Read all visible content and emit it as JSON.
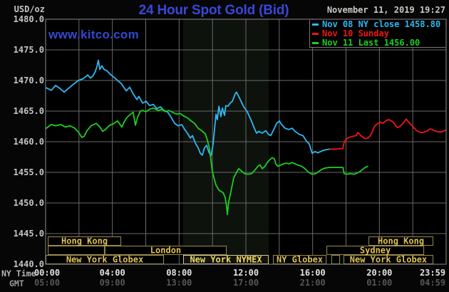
{
  "header": {
    "units": "USD/oz",
    "title": "24 Hour Spot Gold (Bid)",
    "datetime": "November 11, 2019 19:27",
    "watermark": "www.kitco.com"
  },
  "colors": {
    "background": "#060607",
    "plot_bg": "#000000",
    "grid": "#6a6a6a",
    "border": "#8c8c8c",
    "title": "#3947d8",
    "watermark": "#3448d2",
    "datetime": "#c9c9c1",
    "units": "#c4c4c4",
    "y_labels": "#c4c4c4",
    "tick_ny": "#e2e2e2",
    "tick_gmt": "#56565c",
    "axis_row_ny": "#b5b5b5",
    "axis_row_gmt": "#9a9a9a",
    "session_border": "#9a8d4c",
    "session_label": "#ddc154",
    "session_hl_border": "#d9cf9b",
    "session_hl_label": "#f0d966",
    "session_hl_bg": "#13130c",
    "shade": "#0d120d",
    "legend_border": "#787878",
    "series_cyan": "#2eb8f2",
    "series_red": "#f21414",
    "series_green": "#1ecf1e"
  },
  "legend": [
    {
      "label": "Nov 08 NY close 1458.80",
      "color": "#2eb8f2"
    },
    {
      "label": "Nov 10 Sunday",
      "color": "#f21414"
    },
    {
      "label": "Nov 11 Last 1456.00",
      "color": "#1ecf1e"
    }
  ],
  "axes": {
    "y": {
      "min": 1440,
      "max": 1480,
      "step": 5,
      "labels": [
        "1440.0",
        "1445.0",
        "1450.0",
        "1455.0",
        "1460.0",
        "1465.0",
        "1470.0",
        "1475.0",
        "1480.0"
      ]
    },
    "x": {
      "ny_label": "NY Time",
      "gmt_label": "GMT",
      "ticks": [
        {
          "t": 0,
          "ny": "00:00",
          "gmt": "05:00"
        },
        {
          "t": 4,
          "ny": "04:00",
          "gmt": "09:00"
        },
        {
          "t": 8,
          "ny": "08:00",
          "gmt": "13:00"
        },
        {
          "t": 12,
          "ny": "12:00",
          "gmt": "17:00"
        },
        {
          "t": 16,
          "ny": "16:00",
          "gmt": "21:00"
        },
        {
          "t": 20,
          "ny": "20:00",
          "gmt": "01:00"
        },
        {
          "t": 23.98,
          "ny": "23:59",
          "gmt": "04:59"
        }
      ]
    }
  },
  "sessions": {
    "rows": [
      [
        {
          "t0": 0.13,
          "t1": 4.53,
          "label": "Hong Kong"
        },
        {
          "t0": 19.35,
          "t1": 23.23,
          "label": "Hong Kong"
        }
      ],
      [
        {
          "t0": 0.13,
          "t1": 3.54,
          "label": ""
        },
        {
          "t0": 3.54,
          "t1": 10.85,
          "label": "London"
        },
        {
          "t0": 16.83,
          "t1": 22.68,
          "label": "Sydney"
        }
      ],
      [
        {
          "t0": 0,
          "t1": 7.09,
          "label": "New York Globex"
        },
        {
          "t0": 8.24,
          "t1": 13.37,
          "label": "New York NYMEX",
          "highlight": true
        },
        {
          "t0": 13.62,
          "t1": 16.83,
          "label": "NY Globex"
        },
        {
          "t0": 17.12,
          "t1": 17.64,
          "label": ""
        },
        {
          "t0": 17.85,
          "t1": 23.23,
          "label": "New York Globex"
        }
      ]
    ]
  },
  "chart_data": {
    "type": "line",
    "title": "24 Hour Spot Gold (Bid)",
    "ylabel": "USD/oz",
    "ylim": [
      1440,
      1480
    ],
    "xlim_hours": [
      0,
      24
    ],
    "grid": true,
    "legend_position": "top-right",
    "shaded_region": {
      "t0": 8.24,
      "t1": 13.37
    },
    "series": [
      {
        "name": "Nov 08 NY close 1458.80",
        "color": "#2eb8f2",
        "points": [
          [
            0.04,
            1468.8
          ],
          [
            0.34,
            1468.4
          ],
          [
            0.6,
            1469.2
          ],
          [
            0.9,
            1468.6
          ],
          [
            1.11,
            1468.1
          ],
          [
            1.41,
            1468.8
          ],
          [
            1.67,
            1469.4
          ],
          [
            1.96,
            1470
          ],
          [
            2.26,
            1470.3
          ],
          [
            2.52,
            1470.9
          ],
          [
            2.69,
            1470.4
          ],
          [
            2.82,
            1470.7
          ],
          [
            2.95,
            1471.3
          ],
          [
            3.07,
            1472.2
          ],
          [
            3.16,
            1473.3
          ],
          [
            3.25,
            1471.8
          ],
          [
            3.37,
            1472.4
          ],
          [
            3.5,
            1471.8
          ],
          [
            3.67,
            1471.6
          ],
          [
            3.84,
            1471.1
          ],
          [
            3.97,
            1470.8
          ],
          [
            4.23,
            1470.2
          ],
          [
            4.53,
            1469.5
          ],
          [
            4.83,
            1468.3
          ],
          [
            5.04,
            1468.9
          ],
          [
            5.25,
            1467.8
          ],
          [
            5.47,
            1466.9
          ],
          [
            5.59,
            1467.4
          ],
          [
            5.81,
            1466.3
          ],
          [
            6.02,
            1466.6
          ],
          [
            6.23,
            1465.9
          ],
          [
            6.45,
            1466.1
          ],
          [
            6.66,
            1465.4
          ],
          [
            6.88,
            1465.7
          ],
          [
            7.09,
            1465.1
          ],
          [
            7.3,
            1464.9
          ],
          [
            7.52,
            1464
          ],
          [
            7.73,
            1463
          ],
          [
            7.94,
            1462.6
          ],
          [
            8.16,
            1462.8
          ],
          [
            8.33,
            1462
          ],
          [
            8.5,
            1461.4
          ],
          [
            8.67,
            1460.6
          ],
          [
            8.8,
            1461
          ],
          [
            8.97,
            1459.8
          ],
          [
            9.14,
            1459
          ],
          [
            9.27,
            1458.1
          ],
          [
            9.39,
            1457.8
          ],
          [
            9.52,
            1459
          ],
          [
            9.65,
            1459.4
          ],
          [
            9.78,
            1458.3
          ],
          [
            9.91,
            1457.7
          ],
          [
            10.03,
            1459.5
          ],
          [
            10.12,
            1462
          ],
          [
            10.21,
            1464.5
          ],
          [
            10.29,
            1463.6
          ],
          [
            10.38,
            1465.8
          ],
          [
            10.5,
            1464.1
          ],
          [
            10.59,
            1465.5
          ],
          [
            10.72,
            1464.3
          ],
          [
            10.8,
            1465.9
          ],
          [
            10.93,
            1465.8
          ],
          [
            11.06,
            1466.3
          ],
          [
            11.19,
            1466.6
          ],
          [
            11.36,
            1467.8
          ],
          [
            11.44,
            1468.1
          ],
          [
            11.57,
            1467.4
          ],
          [
            11.66,
            1466.9
          ],
          [
            11.87,
            1465.7
          ],
          [
            12.08,
            1464.9
          ],
          [
            12.3,
            1463.6
          ],
          [
            12.51,
            1462.2
          ],
          [
            12.64,
            1461.4
          ],
          [
            12.77,
            1461.7
          ],
          [
            12.98,
            1461.4
          ],
          [
            13.19,
            1461.8
          ],
          [
            13.36,
            1461.2
          ],
          [
            13.49,
            1461
          ],
          [
            13.71,
            1462.2
          ],
          [
            13.84,
            1463
          ],
          [
            14.01,
            1463.4
          ],
          [
            14.14,
            1462.8
          ],
          [
            14.35,
            1462.2
          ],
          [
            14.56,
            1462
          ],
          [
            14.77,
            1462.2
          ],
          [
            14.99,
            1461.6
          ],
          [
            15.2,
            1461.2
          ],
          [
            15.42,
            1461
          ],
          [
            15.63,
            1460.1
          ],
          [
            15.8,
            1459.6
          ],
          [
            15.97,
            1458.1
          ],
          [
            16.14,
            1458.4
          ],
          [
            16.31,
            1458.2
          ],
          [
            16.48,
            1458.4
          ],
          [
            16.65,
            1458.6
          ],
          [
            16.82,
            1458.7
          ],
          [
            17.04,
            1458.8
          ]
        ]
      },
      {
        "name": "Nov 10 Sunday",
        "color": "#f21414",
        "points": [
          [
            17.04,
            1458.8
          ],
          [
            17.4,
            1458.8
          ],
          [
            17.81,
            1458.9
          ],
          [
            17.89,
            1459.9
          ],
          [
            17.98,
            1460.3
          ],
          [
            18.1,
            1460.6
          ],
          [
            18.28,
            1460.8
          ],
          [
            18.45,
            1460.9
          ],
          [
            18.62,
            1461
          ],
          [
            18.7,
            1461.5
          ],
          [
            18.83,
            1461.2
          ],
          [
            18.92,
            1460.9
          ],
          [
            19.05,
            1460.7
          ],
          [
            19.17,
            1460.5
          ],
          [
            19.3,
            1460.6
          ],
          [
            19.43,
            1460.9
          ],
          [
            19.56,
            1461.5
          ],
          [
            19.69,
            1462.4
          ],
          [
            19.81,
            1462.8
          ],
          [
            19.94,
            1463
          ],
          [
            20.07,
            1463.2
          ],
          [
            20.2,
            1463
          ],
          [
            20.33,
            1463.3
          ],
          [
            20.45,
            1463.5
          ],
          [
            20.58,
            1463.6
          ],
          [
            20.71,
            1463.4
          ],
          [
            20.84,
            1463.2
          ],
          [
            20.97,
            1462.6
          ],
          [
            21.09,
            1462.3
          ],
          [
            21.22,
            1462.5
          ],
          [
            21.35,
            1462.8
          ],
          [
            21.48,
            1463.2
          ],
          [
            21.61,
            1463.7
          ],
          [
            21.73,
            1463.3
          ],
          [
            21.86,
            1462.9
          ],
          [
            22.03,
            1462.4
          ],
          [
            22.2,
            1461.9
          ],
          [
            22.37,
            1461.6
          ],
          [
            22.54,
            1461.5
          ],
          [
            22.71,
            1461.6
          ],
          [
            22.88,
            1461.8
          ],
          [
            23.05,
            1462.1
          ],
          [
            23.22,
            1461.9
          ],
          [
            23.39,
            1461.7
          ],
          [
            23.56,
            1461.6
          ],
          [
            23.73,
            1461.6
          ],
          [
            23.98,
            1461.9
          ]
        ]
      },
      {
        "name": "Nov 11 Last 1456.00",
        "color": "#1ecf1e",
        "points": [
          [
            0.04,
            1462.2
          ],
          [
            0.34,
            1462.8
          ],
          [
            0.6,
            1462.6
          ],
          [
            0.9,
            1462.8
          ],
          [
            1.2,
            1462.4
          ],
          [
            1.45,
            1462.6
          ],
          [
            1.75,
            1462.2
          ],
          [
            1.96,
            1461.6
          ],
          [
            2.18,
            1460.7
          ],
          [
            2.31,
            1460.9
          ],
          [
            2.48,
            1461.8
          ],
          [
            2.73,
            1462.6
          ],
          [
            3.03,
            1463
          ],
          [
            3.25,
            1462.4
          ],
          [
            3.42,
            1461.7
          ],
          [
            3.59,
            1462
          ],
          [
            3.8,
            1462.6
          ],
          [
            4.1,
            1463
          ],
          [
            4.31,
            1463.4
          ],
          [
            4.44,
            1462.9
          ],
          [
            4.57,
            1462.4
          ],
          [
            4.7,
            1463.2
          ],
          [
            4.83,
            1463.8
          ],
          [
            5.04,
            1464.4
          ],
          [
            5.25,
            1464.8
          ],
          [
            5.38,
            1462.7
          ],
          [
            5.51,
            1464
          ],
          [
            5.68,
            1465
          ],
          [
            5.81,
            1465.1
          ],
          [
            6.02,
            1464.9
          ],
          [
            6.23,
            1465.3
          ],
          [
            6.45,
            1465.5
          ],
          [
            6.75,
            1465.1
          ],
          [
            6.96,
            1465.3
          ],
          [
            7.17,
            1464.9
          ],
          [
            7.39,
            1465.1
          ],
          [
            7.6,
            1464.8
          ],
          [
            7.86,
            1464.5
          ],
          [
            8.07,
            1464.6
          ],
          [
            8.28,
            1464.2
          ],
          [
            8.5,
            1463.9
          ],
          [
            8.71,
            1463.4
          ],
          [
            8.92,
            1463
          ],
          [
            9.14,
            1462.2
          ],
          [
            9.35,
            1461.8
          ],
          [
            9.56,
            1461.3
          ],
          [
            9.69,
            1460.3
          ],
          [
            9.82,
            1458.8
          ],
          [
            9.91,
            1456.9
          ],
          [
            9.99,
            1455.2
          ],
          [
            10.08,
            1454.2
          ],
          [
            10.21,
            1452.9
          ],
          [
            10.38,
            1452.1
          ],
          [
            10.5,
            1451.9
          ],
          [
            10.63,
            1451.7
          ],
          [
            10.76,
            1450.9
          ],
          [
            10.85,
            1449.3
          ],
          [
            10.89,
            1448.1
          ],
          [
            10.97,
            1450.2
          ],
          [
            11.06,
            1451.3
          ],
          [
            11.15,
            1452.5
          ],
          [
            11.27,
            1454.1
          ],
          [
            11.44,
            1455
          ],
          [
            11.57,
            1455.6
          ],
          [
            11.7,
            1455.3
          ],
          [
            11.91,
            1454.8
          ],
          [
            12.13,
            1454.7
          ],
          [
            12.34,
            1454.8
          ],
          [
            12.55,
            1455.4
          ],
          [
            12.72,
            1456
          ],
          [
            12.85,
            1456.2
          ],
          [
            12.98,
            1455.6
          ],
          [
            13.15,
            1456
          ],
          [
            13.28,
            1456.6
          ],
          [
            13.41,
            1457
          ],
          [
            13.58,
            1457.4
          ],
          [
            13.71,
            1457.2
          ],
          [
            13.79,
            1456.4
          ],
          [
            13.92,
            1456
          ],
          [
            14.09,
            1456.2
          ],
          [
            14.26,
            1456.4
          ],
          [
            14.43,
            1456.5
          ],
          [
            14.6,
            1456.4
          ],
          [
            14.77,
            1456.6
          ],
          [
            14.94,
            1456.4
          ],
          [
            15.12,
            1456.2
          ],
          [
            15.33,
            1456
          ],
          [
            15.54,
            1455.6
          ],
          [
            15.76,
            1455
          ],
          [
            15.97,
            1454.7
          ],
          [
            16.18,
            1454.8
          ],
          [
            16.4,
            1455.2
          ],
          [
            16.57,
            1455.5
          ],
          [
            16.74,
            1455.7
          ],
          [
            16.99,
            1455.8
          ],
          [
            17.34,
            1455.8
          ],
          [
            17.81,
            1455.8
          ],
          [
            17.89,
            1454.8
          ],
          [
            18.06,
            1454.7
          ],
          [
            18.28,
            1454.8
          ],
          [
            18.49,
            1454.7
          ],
          [
            18.66,
            1454.9
          ],
          [
            18.83,
            1455.1
          ],
          [
            18.96,
            1455.4
          ],
          [
            19.09,
            1455.7
          ],
          [
            19.22,
            1455.9
          ],
          [
            19.3,
            1456
          ]
        ]
      }
    ]
  }
}
